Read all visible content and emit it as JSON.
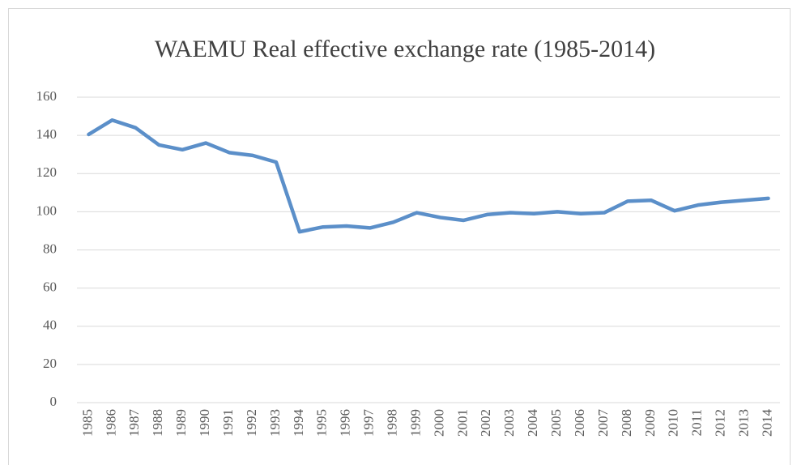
{
  "chart_data": {
    "type": "line",
    "title": "WAEMU Real effective exchange rate (1985-2014)",
    "categories": [
      "1985",
      "1986",
      "1987",
      "1988",
      "1989",
      "1990",
      "1991",
      "1992",
      "1993",
      "1994",
      "1995",
      "1996",
      "1997",
      "1998",
      "1999",
      "2000",
      "2001",
      "2002",
      "2003",
      "2004",
      "2005",
      "2006",
      "2007",
      "2008",
      "2009",
      "2010",
      "2011",
      "2012",
      "2013",
      "2014"
    ],
    "series": [
      {
        "color": "#5b8fc9",
        "values": [
          140.5,
          148,
          144,
          135,
          132.5,
          136,
          131,
          129.5,
          126,
          89.5,
          92,
          92.5,
          91.5,
          94.5,
          99.5,
          97,
          95.5,
          98.5,
          99.5,
          99,
          100,
          99,
          99.5,
          105.5,
          106,
          100.5,
          103.5,
          105,
          106,
          107
        ]
      }
    ],
    "ylim": [
      0,
      160
    ],
    "yticks": [
      0,
      20,
      40,
      60,
      80,
      100,
      120,
      140,
      160
    ],
    "grid": true
  }
}
